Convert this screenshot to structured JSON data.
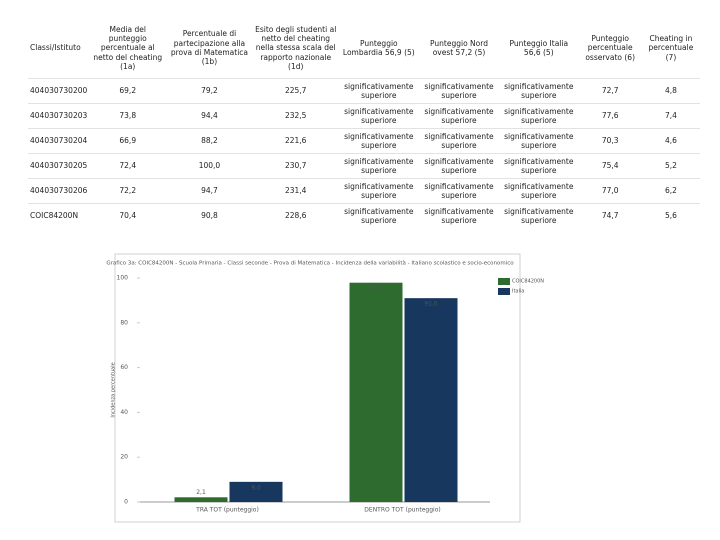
{
  "table": {
    "header": [
      "Classi/Istituto",
      "Media del punteggio percentuale al netto del cheating (1a)",
      "Percentuale di partecipazione alla prova di Matematica (1b)",
      "Esito degli studenti al netto del cheating nella stessa scala del rapporto nazionale (1d)",
      "Punteggio Lombardia 56,9 (5)",
      "Punteggio Nord ovest 57,2 (5)",
      "Punteggio Italia 56,6 (5)",
      "Punteggio percentuale osservato (6)",
      "Cheating in percentuale (7)"
    ],
    "rows": [
      [
        "404030730200",
        "69,2",
        "79,2",
        "225,7",
        "significativamente superiore",
        "significativamente superiore",
        "significativamente superiore",
        "72,7",
        "4,8"
      ],
      [
        "404030730203",
        "73,8",
        "94,4",
        "232,5",
        "significativamente superiore",
        "significativamente superiore",
        "significativamente superiore",
        "77,6",
        "7,4"
      ],
      [
        "404030730204",
        "66,9",
        "88,2",
        "221,6",
        "significativamente superiore",
        "significativamente superiore",
        "significativamente superiore",
        "70,3",
        "4,6"
      ],
      [
        "404030730205",
        "72,4",
        "100,0",
        "230,7",
        "significativamente superiore",
        "significativamente superiore",
        "significativamente superiore",
        "75,4",
        "5,2"
      ],
      [
        "404030730206",
        "72,2",
        "94,7",
        "231,4",
        "significativamente superiore",
        "significativamente superiore",
        "significativamente superiore",
        "77,0",
        "6,2"
      ],
      [
        "COIC84200N",
        "70,4",
        "90,8",
        "228,6",
        "significativamente superiore",
        "significativamente superiore",
        "significativamente superiore",
        "74,7",
        "5,6"
      ]
    ]
  },
  "chart": {
    "type": "bar",
    "title": "Grafico 3a: COIC84200N - Scuola Primaria - Classi seconde - Prova di Matematica - Incidenza della variabilità - Italiano scolastico e socio-economico",
    "y_label": "Incidenza percentuale",
    "categories": [
      "TRA TOT (punteggio)",
      "DENTRO TOT (punteggio)"
    ],
    "series": [
      {
        "name": "COIC84200N",
        "color": "#2e6b2e",
        "values": [
          2.1,
          97.9
        ],
        "value_labels": [
          "2,1",
          "97,9"
        ]
      },
      {
        "name": "Italia",
        "color": "#17375e",
        "values": [
          9.0,
          91.0
        ],
        "value_labels": [
          "9,0",
          "91,0"
        ]
      }
    ],
    "ylim": [
      0,
      100
    ],
    "yticks": [
      0,
      20,
      40,
      60,
      80,
      100
    ],
    "grid": false
  }
}
